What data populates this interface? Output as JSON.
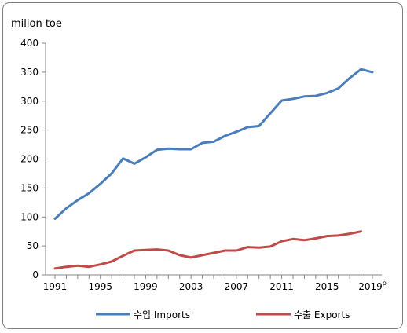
{
  "chart_data": {
    "type": "line",
    "ylabel": "milion toe",
    "ylim": [
      0,
      400
    ],
    "yticks": [
      0,
      50,
      100,
      150,
      200,
      250,
      300,
      350,
      400
    ],
    "xlim": [
      1991,
      2019
    ],
    "xtick_labels": [
      "1991",
      "1995",
      "1999",
      "2003",
      "2007",
      "2011",
      "2015",
      "2019"
    ],
    "xtick_suffix": "p",
    "grid": false,
    "legend_position": "bottom",
    "x": [
      1991,
      1992,
      1993,
      1994,
      1995,
      1996,
      1997,
      1998,
      1999,
      2000,
      2001,
      2002,
      2003,
      2004,
      2005,
      2006,
      2007,
      2008,
      2009,
      2010,
      2011,
      2012,
      2013,
      2014,
      2015,
      2016,
      2017,
      2018,
      2019
    ],
    "series": [
      {
        "name": "수입 Imports",
        "color": "#4a7ebb",
        "values": [
          97,
          115,
          129,
          141,
          157,
          175,
          201,
          192,
          203,
          216,
          218,
          217,
          217,
          228,
          230,
          240,
          247,
          255,
          257,
          279,
          301,
          304,
          308,
          309,
          314,
          322,
          340,
          355,
          350
        ]
      },
      {
        "name": "수출 Exports",
        "color": "#be4b48",
        "values": [
          11,
          14,
          16,
          14,
          18,
          23,
          33,
          42,
          43,
          44,
          42,
          34,
          30,
          34,
          38,
          42,
          42,
          48,
          47,
          49,
          58,
          62,
          60,
          63,
          67,
          68,
          71,
          75,
          null
        ]
      }
    ]
  }
}
